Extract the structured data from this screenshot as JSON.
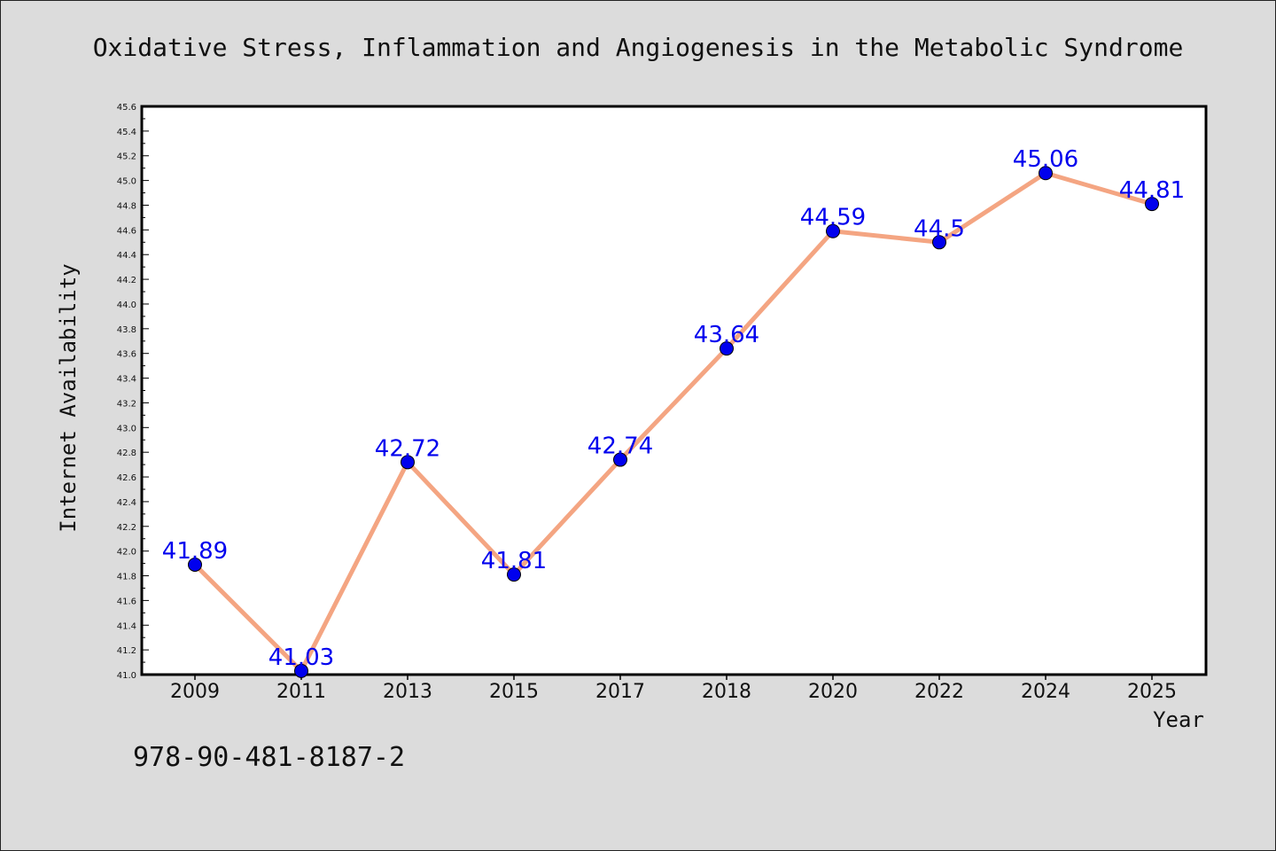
{
  "chart_data": {
    "type": "line",
    "title": "Oxidative Stress, Inflammation and Angiogenesis in the Metabolic Syndrome",
    "xlabel": "Year",
    "ylabel": "Internet Availability",
    "categories": [
      "2009",
      "2011",
      "2013",
      "2015",
      "2017",
      "2018",
      "2020",
      "2022",
      "2024",
      "2025"
    ],
    "series": [
      {
        "values": [
          41.89,
          41.03,
          42.72,
          41.81,
          42.74,
          43.64,
          44.59,
          44.5,
          45.06,
          44.81
        ],
        "labels": [
          "41.89",
          "41.03",
          "42.72",
          "41.81",
          "42.74",
          "43.64",
          "44.59",
          "44.5",
          "45.06",
          "44.81"
        ]
      }
    ],
    "ylim": [
      41.0,
      45.6
    ],
    "yticks": [
      "41.0",
      "41.2",
      "41.4",
      "41.6",
      "41.8",
      "42.0",
      "42.2",
      "42.4",
      "42.6",
      "42.8",
      "43.0",
      "43.2",
      "43.4",
      "43.6",
      "43.8",
      "44.0",
      "44.2",
      "44.4",
      "44.6",
      "44.8",
      "45.0",
      "45.2",
      "45.4",
      "45.6"
    ],
    "grid": false,
    "colors": {
      "line": "#f4a582",
      "marker": "#0000ee",
      "label": "#0000ee",
      "background": "#dcdcdc",
      "plot_background": "#ffffff"
    }
  },
  "footer": {
    "isbn": "978-90-481-8187-2"
  }
}
